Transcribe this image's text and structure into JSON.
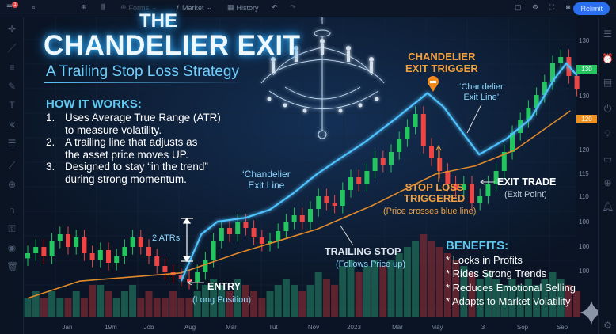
{
  "toolbar": {
    "notification_count": "1",
    "forms": "Forms",
    "market": "Market",
    "history": "History",
    "relimit": "Relimit"
  },
  "title": {
    "line1": "THE",
    "line2": "CHANDELIER EXIT",
    "subtitle": "A Trailing Stop Loss Strategy"
  },
  "how_it_works": {
    "heading": "HOW IT WORKS:",
    "steps": [
      {
        "num": "1.",
        "lines": [
          "Uses Average True Range (ATR)",
          "to measure volatility."
        ]
      },
      {
        "num": "2.",
        "lines": [
          "A trailing line that adjusts as",
          "the asset price moves UP."
        ]
      },
      {
        "num": "3.",
        "lines": [
          "Designed to stay “in the trend”",
          "during strong momentum."
        ]
      }
    ]
  },
  "annotations": {
    "exit_line_left": [
      "‘Chandelier",
      "Exit Line"
    ],
    "trigger": [
      "CHANDELIER",
      "EXIT TRIGGER"
    ],
    "exit_line_right": [
      "‘Chandelier",
      "Exit Line’"
    ],
    "stop_loss": [
      "STOP LOSS",
      "TRIGGERED"
    ],
    "stop_loss_note": "(Price crosses blue line)",
    "exit_trade": "EXIT TRADE",
    "exit_point": "(Exit Point)",
    "atrs": "2 ATRs",
    "entry": "ENTRY",
    "entry_note": "(Long Position)",
    "trailing": "TRAILING STOP",
    "trailing_note": "(Follows Price up)"
  },
  "benefits": {
    "heading": "BENEFITS:",
    "items": [
      "* Locks in Profits",
      "* Rides Strong Trends",
      "* Reduces Emotional Selling",
      "* Adapts to Market Volatility"
    ]
  },
  "price_axis": {
    "ticks": [
      "130",
      "130",
      "120",
      "115",
      "110",
      "100",
      "100",
      "100"
    ],
    "last_price": "130",
    "stop_price": "120"
  },
  "colors": {
    "up": "#22c55e",
    "down": "#ef4444",
    "chandelier_line": "#4fc3ff",
    "trailing_stop": "#e08a2c",
    "accent": "#f0a040",
    "background": "#0a1424"
  },
  "chart_data": {
    "type": "candlestick",
    "title": "THE CHANDELIER EXIT",
    "x_tick_labels": [
      "Jan",
      "19m",
      "Job",
      "Aug",
      "Mar",
      "Tut",
      "Nov",
      "2023",
      "Mar",
      "May",
      "3",
      "Sop",
      "Sep"
    ],
    "ylim": [
      90,
      135
    ],
    "grid": true,
    "closes": [
      100,
      101,
      99.5,
      102,
      103,
      101,
      102.5,
      100,
      99,
      100.5,
      98.5,
      99.5,
      101,
      102.5,
      101,
      99.5,
      98,
      97,
      96.5,
      96,
      95.5,
      97,
      99,
      102,
      104,
      103,
      105,
      104,
      102.5,
      101.5,
      102,
      103.5,
      105,
      106,
      105,
      107,
      109,
      108,
      107.5,
      110,
      112,
      111,
      113,
      115,
      114,
      116,
      118,
      120,
      122,
      117,
      115,
      113,
      111,
      110,
      111,
      108,
      109,
      111,
      113,
      116,
      119,
      121,
      123,
      125,
      127,
      130,
      131,
      128,
      126
    ],
    "volumes": [
      3,
      4,
      3,
      4,
      3,
      3,
      4,
      3,
      5,
      5,
      4,
      3,
      4,
      5,
      3,
      4,
      3,
      3,
      4,
      3,
      3,
      4,
      5,
      6,
      5,
      4,
      6,
      5,
      4,
      3,
      4,
      5,
      6,
      5,
      4,
      5,
      7,
      6,
      5,
      8,
      9,
      7,
      8,
      9,
      8,
      9,
      10,
      11,
      12,
      13,
      12,
      11,
      10,
      9,
      8,
      7,
      6,
      7,
      6,
      5,
      6,
      5,
      6,
      5,
      6,
      7,
      6,
      5,
      4
    ],
    "series": [
      {
        "name": "‘Chandelier Exit Line’",
        "points": [
          [
            19,
            95.6
          ],
          [
            21.5,
            103
          ],
          [
            23.5,
            105
          ],
          [
            27,
            105.6
          ],
          [
            30,
            106.9
          ],
          [
            32.8,
            109.4
          ],
          [
            35.8,
            112.5
          ],
          [
            38.7,
            115
          ],
          [
            41.7,
            117.5
          ],
          [
            45.6,
            121.3
          ],
          [
            49.5,
            125.3
          ],
          [
            51.5,
            123.1
          ],
          [
            54.4,
            118.1
          ],
          [
            55.9,
            115.6
          ],
          [
            59.3,
            118.1
          ],
          [
            62.3,
            121.3
          ],
          [
            65.2,
            127.5
          ],
          [
            66.7,
            130
          ],
          [
            68,
            128.1
          ]
        ]
      },
      {
        "name": "TRAILING STOP",
        "points": [
          [
            0,
            92.9
          ],
          [
            6.4,
            95.6
          ],
          [
            19,
            96.9
          ],
          [
            26,
            100
          ],
          [
            35.8,
            103.8
          ],
          [
            42.6,
            107.5
          ],
          [
            50.5,
            112.5
          ],
          [
            55.4,
            113.8
          ],
          [
            60.3,
            116.3
          ],
          [
            67.2,
            122.5
          ]
        ]
      }
    ],
    "markers": [
      {
        "label": "ENTRY",
        "index": 20
      },
      {
        "label": "CHANDELIER EXIT TRIGGER",
        "index": 49
      },
      {
        "label": "EXIT TRADE",
        "index": 55
      }
    ]
  }
}
